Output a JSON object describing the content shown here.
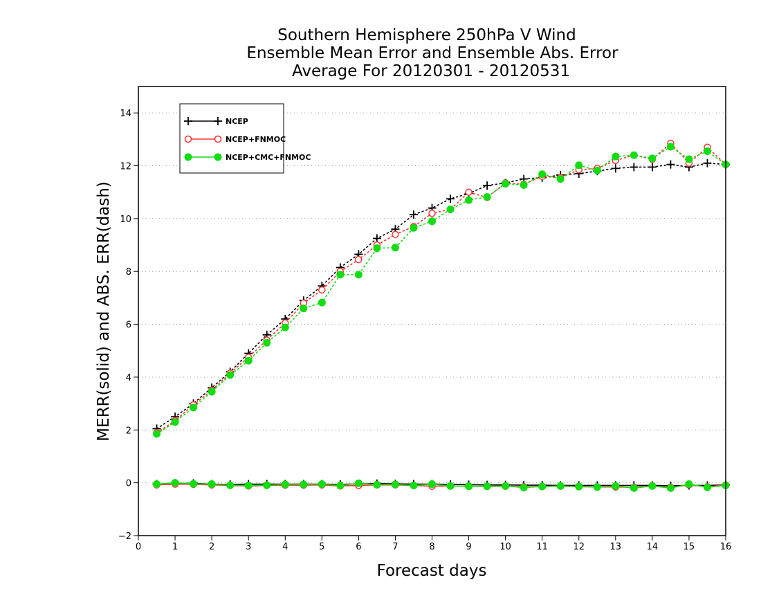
{
  "chart_data": {
    "type": "line",
    "title_lines": [
      "Southern Hemisphere 250hPa V Wind",
      "Ensemble Mean Error and Ensemble Abs. Error",
      "Average For 20120301 - 20120531"
    ],
    "xlabel": "Forecast days",
    "ylabel": "MERR(solid) and ABS. ERR(dash)",
    "xlim": [
      0,
      16
    ],
    "ylim": [
      -2,
      15
    ],
    "xticks": [
      0,
      1,
      2,
      3,
      4,
      5,
      6,
      7,
      8,
      9,
      10,
      11,
      12,
      13,
      14,
      15,
      16
    ],
    "yticks": [
      -2,
      0,
      2,
      4,
      6,
      8,
      10,
      12,
      14
    ],
    "grid": "horizontal dotted",
    "legend_position": "top-left",
    "x": [
      0.5,
      1.0,
      1.5,
      2.0,
      2.5,
      3.0,
      3.5,
      4.0,
      4.5,
      5.0,
      5.5,
      6.0,
      6.5,
      7.0,
      7.5,
      8.0,
      8.5,
      9.0,
      9.5,
      10.0,
      10.5,
      11.0,
      11.5,
      12.0,
      12.5,
      13.0,
      13.5,
      14.0,
      14.5,
      15.0,
      15.5,
      16.0
    ],
    "series": [
      {
        "name": "NCEP",
        "color": "#000000",
        "marker": "plus",
        "abs_err": [
          2.05,
          2.5,
          3.0,
          3.6,
          4.2,
          4.9,
          5.6,
          6.2,
          6.9,
          7.45,
          8.15,
          8.65,
          9.25,
          9.6,
          10.15,
          10.4,
          10.75,
          10.95,
          11.25,
          11.35,
          11.5,
          11.55,
          11.65,
          11.7,
          11.8,
          11.9,
          11.95,
          11.95,
          12.05,
          11.95,
          12.1,
          12.05
        ],
        "mean_err": [
          -0.05,
          -0.02,
          -0.02,
          -0.05,
          -0.06,
          -0.05,
          -0.05,
          -0.05,
          -0.05,
          -0.05,
          -0.06,
          -0.04,
          -0.03,
          -0.04,
          -0.05,
          -0.05,
          -0.06,
          -0.07,
          -0.08,
          -0.08,
          -0.09,
          -0.09,
          -0.1,
          -0.1,
          -0.1,
          -0.1,
          -0.1,
          -0.1,
          -0.11,
          -0.1,
          -0.1,
          -0.08
        ]
      },
      {
        "name": "NCEP+FNMOC",
        "color": "#ff3333",
        "marker": "open-circle",
        "abs_err": [
          1.9,
          2.35,
          2.95,
          3.5,
          4.15,
          4.75,
          5.4,
          6.05,
          6.8,
          7.3,
          8.0,
          8.45,
          9.0,
          9.4,
          9.7,
          10.2,
          10.35,
          11.0,
          10.8,
          11.35,
          11.3,
          11.6,
          11.55,
          11.85,
          11.9,
          12.2,
          12.4,
          12.25,
          12.85,
          12.1,
          12.7,
          12.05
        ],
        "mean_err": [
          -0.08,
          -0.05,
          -0.06,
          -0.08,
          -0.1,
          -0.12,
          -0.1,
          -0.09,
          -0.09,
          -0.08,
          -0.12,
          -0.1,
          -0.08,
          -0.08,
          -0.1,
          -0.13,
          -0.12,
          -0.13,
          -0.14,
          -0.13,
          -0.15,
          -0.14,
          -0.13,
          -0.15,
          -0.16,
          -0.16,
          -0.17,
          -0.12,
          -0.17,
          -0.08,
          -0.15,
          -0.08
        ]
      },
      {
        "name": "NCEP+CMC+FNMOC",
        "color": "#11dd11",
        "marker": "filled-circle",
        "abs_err": [
          1.85,
          2.3,
          2.85,
          3.45,
          4.08,
          4.62,
          5.3,
          5.88,
          6.6,
          6.82,
          7.88,
          7.88,
          8.88,
          8.9,
          9.65,
          9.9,
          10.35,
          10.7,
          10.82,
          11.32,
          11.27,
          11.68,
          11.5,
          12.02,
          11.82,
          12.35,
          12.4,
          12.28,
          12.72,
          12.25,
          12.55,
          12.05
        ],
        "mean_err": [
          -0.05,
          0.0,
          -0.04,
          -0.05,
          -0.09,
          -0.1,
          -0.09,
          -0.06,
          -0.06,
          -0.05,
          -0.1,
          -0.02,
          -0.07,
          -0.06,
          -0.1,
          -0.05,
          -0.12,
          -0.13,
          -0.13,
          -0.12,
          -0.18,
          -0.14,
          -0.12,
          -0.14,
          -0.16,
          -0.12,
          -0.2,
          -0.12,
          -0.2,
          -0.05,
          -0.17,
          -0.1
        ]
      }
    ]
  }
}
